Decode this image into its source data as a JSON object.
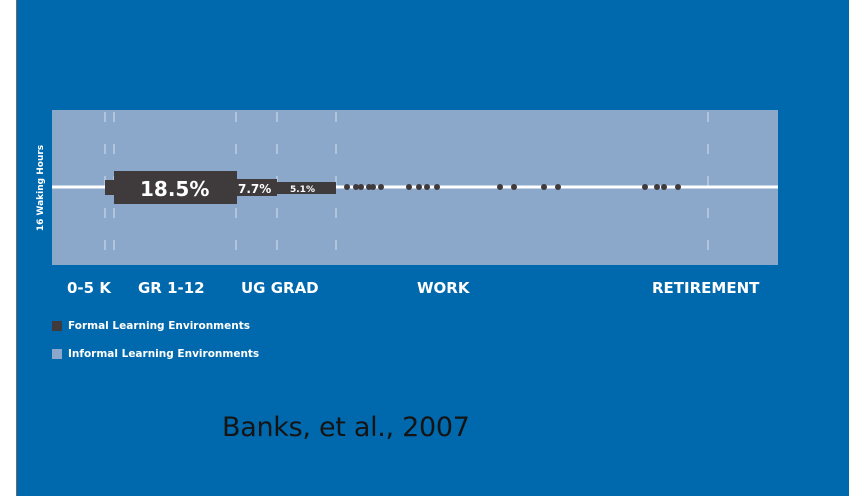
{
  "colors": {
    "background": "#0069ad",
    "band": "#8ba8cb",
    "formal": "#3f3b3c",
    "informal": "#8ba8cb",
    "line": "#ffffff",
    "dots": "#3f3b3c"
  },
  "diagram": {
    "y_axis_label": "16 Waking Hours",
    "stages": [
      {
        "label": "0-5 K"
      },
      {
        "label": "GR 1-12"
      },
      {
        "label": "UG GRAD"
      },
      {
        "label": "WORK"
      },
      {
        "label": "RETIREMENT"
      }
    ],
    "segments": [
      {
        "label": "18.5%"
      },
      {
        "label": "7.7%"
      },
      {
        "label": "5.1%"
      }
    ]
  },
  "legend": {
    "formal_label": "Formal Learning Environments",
    "informal_label": "Informal Learning Environments"
  },
  "citation": "Banks, et al., 2007"
}
